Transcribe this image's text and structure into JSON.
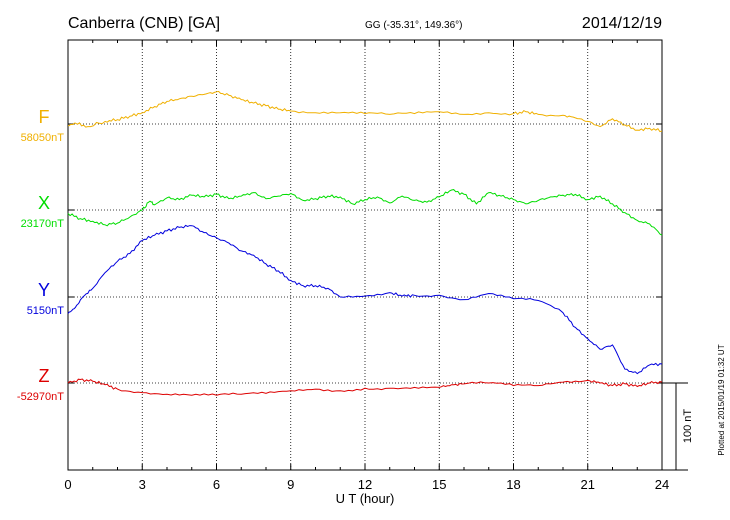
{
  "header": {
    "station": "Canberra (CNB)  [GA]",
    "coords": "GG (-35.31°, 149.36°)",
    "date": "2014/12/19"
  },
  "plotted_note": "Plotted at 2015/01/19 01:32 UT",
  "scale_bar_label": "100 nT",
  "chart_data": {
    "type": "line",
    "xlabel": "U T (hour)",
    "xlim": [
      0,
      24
    ],
    "xticks": [
      "0",
      "3",
      "6",
      "9",
      "12",
      "15",
      "18",
      "21",
      "24"
    ],
    "grid": true,
    "scale_nT": 100,
    "series": [
      {
        "name": "F",
        "baseline_label": "58050nT",
        "baseline_nT": 58050,
        "color": "#f0b000",
        "x": [
          0,
          0.3,
          0.8,
          1.5,
          2,
          2.5,
          3,
          3.5,
          4,
          4.5,
          5,
          5.5,
          6,
          6.5,
          7,
          7.5,
          8,
          8.5,
          9,
          10,
          11,
          12,
          13,
          14,
          15,
          16,
          17,
          18,
          18.5,
          19,
          20,
          20.5,
          21,
          21.5,
          22,
          22.5,
          23,
          23.5,
          24
        ],
        "y": [
          58048,
          58051,
          58047,
          58053,
          58055,
          58059,
          58063,
          58070,
          58076,
          58079,
          58082,
          58084,
          58087,
          58083,
          58078,
          58074,
          58071,
          58067,
          58065,
          58063,
          58063,
          58062,
          58061,
          58062,
          58064,
          58061,
          58063,
          58062,
          58064,
          58061,
          58060,
          58057,
          58053,
          58047,
          58056,
          58049,
          58043,
          58045,
          58042
        ]
      },
      {
        "name": "X",
        "baseline_label": "23170nT",
        "baseline_nT": 23170,
        "color": "#00dd00",
        "x": [
          0,
          0.5,
          1,
          1.5,
          2,
          2.5,
          3,
          3.3,
          3.5,
          4,
          4.5,
          5,
          5.5,
          6,
          6.5,
          7,
          7.5,
          8,
          8.5,
          9,
          9.5,
          10,
          10.5,
          11,
          11.5,
          12,
          12.5,
          13,
          13.5,
          14,
          14.5,
          15,
          15.5,
          16,
          16.5,
          17,
          17.5,
          18,
          18.5,
          19,
          19.5,
          20,
          20.5,
          21,
          21.5,
          22,
          22.5,
          23,
          23.5,
          24
        ],
        "y": [
          23166,
          23160,
          23157,
          23153,
          23155,
          23162,
          23170,
          23180,
          23176,
          23184,
          23182,
          23187,
          23185,
          23188,
          23183,
          23186,
          23190,
          23183,
          23186,
          23189,
          23181,
          23183,
          23186,
          23185,
          23177,
          23182,
          23185,
          23178,
          23186,
          23181,
          23179,
          23185,
          23193,
          23188,
          23177,
          23190,
          23186,
          23182,
          23177,
          23181,
          23185,
          23187,
          23188,
          23182,
          23186,
          23177,
          23167,
          23158,
          23154,
          23141
        ]
      },
      {
        "name": "Y",
        "baseline_label": "5150nT",
        "baseline_nT": 5150,
        "color": "#0000dd",
        "x": [
          0,
          0.3,
          0.6,
          1,
          1.5,
          2,
          2.5,
          3,
          3.5,
          4,
          4.5,
          5,
          5.5,
          6,
          6.5,
          7,
          7.5,
          8,
          8.5,
          9,
          9.5,
          10,
          10.5,
          11,
          12,
          13,
          13.5,
          14,
          15,
          16,
          17,
          18,
          19,
          20,
          20.5,
          21,
          21.5,
          22,
          22.5,
          23,
          23.5,
          24
        ],
        "y": [
          5131,
          5138,
          5150,
          5160,
          5178,
          5191,
          5200,
          5215,
          5221,
          5226,
          5230,
          5232,
          5224,
          5218,
          5212,
          5203,
          5198,
          5188,
          5180,
          5169,
          5163,
          5163,
          5160,
          5150,
          5151,
          5155,
          5151,
          5152,
          5152,
          5147,
          5154,
          5148,
          5146,
          5132,
          5115,
          5102,
          5090,
          5095,
          5067,
          5062,
          5072,
          5073
        ]
      },
      {
        "name": "Z",
        "baseline_label": "-52970nT",
        "baseline_nT": -52970,
        "color": "#dd0000",
        "x": [
          0,
          0.5,
          1,
          1.5,
          2,
          3,
          4,
          5,
          6,
          7,
          8,
          9,
          10,
          11,
          12,
          13,
          14,
          15,
          15.5,
          16,
          17,
          18,
          19,
          20,
          21,
          21.5,
          22,
          22.5,
          23,
          23.5,
          24
        ],
        "y": [
          -52970,
          -52966,
          -52968,
          -52972,
          -52977,
          -52981,
          -52983,
          -52984,
          -52984,
          -52983,
          -52982,
          -52979,
          -52977,
          -52979,
          -52976,
          -52976,
          -52975,
          -52975,
          -52972,
          -52971,
          -52970,
          -52973,
          -52973,
          -52969,
          -52967,
          -52970,
          -52973,
          -52971,
          -52974,
          -52970,
          -52969
        ]
      }
    ]
  }
}
